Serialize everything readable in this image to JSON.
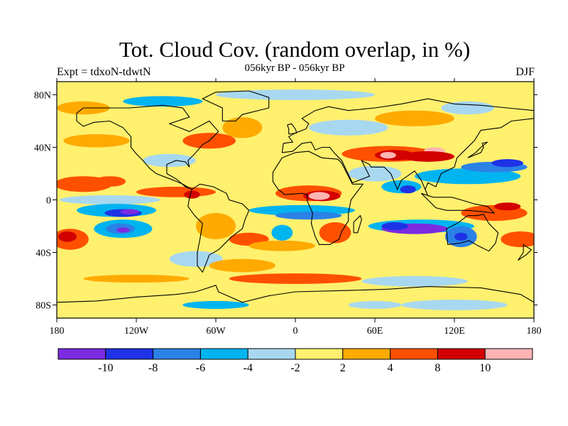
{
  "title": "Tot. Cloud Cov. (random overlap, in %)",
  "subtitle": "056kyr BP - 056kyr BP",
  "left_label": "Expt = tdxoN-tdwtN",
  "right_label": "DJF",
  "map": {
    "lat_ticks": [
      {
        "value": 80,
        "label": "80N"
      },
      {
        "value": 40,
        "label": "40N"
      },
      {
        "value": 0,
        "label": "0"
      },
      {
        "value": -40,
        "label": "40S"
      },
      {
        "value": -80,
        "label": "80S"
      }
    ],
    "lon_ticks": [
      {
        "value": -180,
        "label": "180"
      },
      {
        "value": -120,
        "label": "120W"
      },
      {
        "value": -60,
        "label": "60W"
      },
      {
        "value": 0,
        "label": "0"
      },
      {
        "value": 60,
        "label": "60E"
      },
      {
        "value": 120,
        "label": "120E"
      },
      {
        "value": 180,
        "label": "180"
      }
    ],
    "lon_range": [
      -180,
      180
    ],
    "lat_range": [
      -90,
      90
    ]
  },
  "colorbar": {
    "colors": [
      "#7b2be0",
      "#1e32e6",
      "#2b82e6",
      "#00b4f0",
      "#a8d8f0",
      "#fff06e",
      "#ffaa00",
      "#ff5000",
      "#d20000",
      "#ffb4b4"
    ],
    "labels": [
      {
        "boundary": 1,
        "text": "-10"
      },
      {
        "boundary": 2,
        "text": "-8"
      },
      {
        "boundary": 3,
        "text": "-6"
      },
      {
        "boundary": 4,
        "text": "-4"
      },
      {
        "boundary": 5,
        "text": "-2"
      },
      {
        "boundary": 6,
        "text": "2"
      },
      {
        "boundary": 7,
        "text": "4"
      },
      {
        "boundary": 8,
        "text": "8"
      },
      {
        "boundary": 9,
        "text": "10"
      }
    ]
  }
}
